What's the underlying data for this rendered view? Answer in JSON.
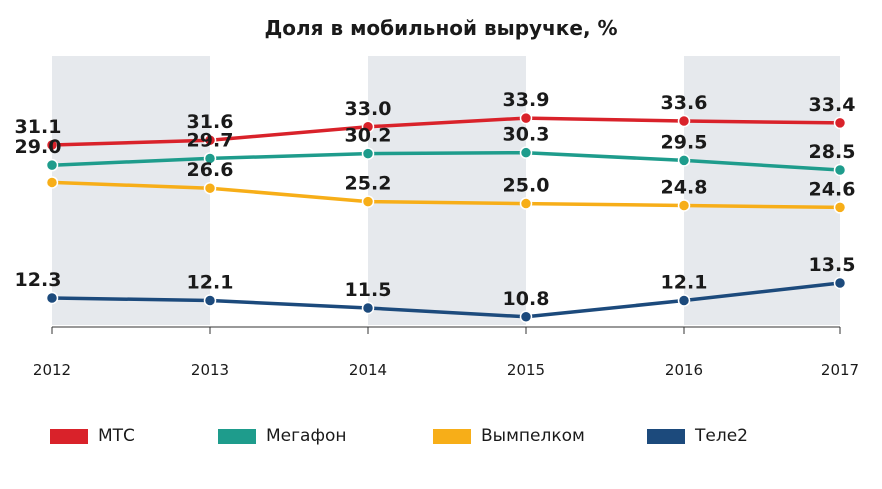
{
  "chart_data": {
    "type": "line",
    "title": "Доля в мобильной выручке, %",
    "categories": [
      "2012",
      "2013",
      "2014",
      "2015",
      "2016",
      "2017"
    ],
    "ylim": [
      10,
      35
    ],
    "value_labels": [
      [
        "31.1",
        "31.6",
        "33.0",
        "33.9",
        "33.6",
        "33.4"
      ],
      [
        "29.0",
        "29.7",
        "30.2",
        "30.3",
        "29.5",
        "28.5"
      ],
      [
        "",
        "26.6",
        "25.2",
        "25.0",
        "24.8",
        "24.6"
      ],
      [
        "12.3",
        "12.1",
        "11.5",
        "10.8",
        "12.1",
        "13.5"
      ]
    ],
    "series": [
      {
        "name": "МТС",
        "color": "#d9222a",
        "values": [
          31.1,
          31.6,
          33.0,
          33.9,
          33.6,
          33.4
        ]
      },
      {
        "name": "Мегафон",
        "color": "#1e9c8c",
        "values": [
          29.0,
          29.7,
          30.2,
          30.3,
          29.5,
          28.5
        ]
      },
      {
        "name": "Вымпелком",
        "color": "#f7ae18",
        "values": [
          27.2,
          26.6,
          25.2,
          25.0,
          24.8,
          24.6
        ]
      },
      {
        "name": "Теле2",
        "color": "#1c4a7c",
        "values": [
          12.3,
          12.1,
          11.5,
          10.8,
          12.1,
          13.5
        ]
      }
    ],
    "shaded_bands": [
      [
        2012,
        2013
      ],
      [
        2014,
        2015
      ],
      [
        2016,
        2017
      ]
    ],
    "shade_color": "#e6e9ed",
    "grid": false,
    "legend_position": "bottom-left"
  }
}
